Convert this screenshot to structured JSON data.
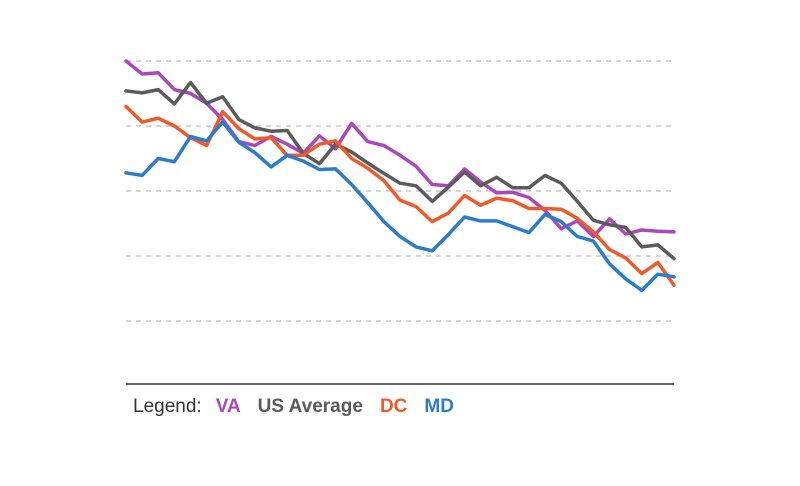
{
  "chart_data": {
    "type": "line",
    "title": "",
    "xlabel": "",
    "ylabel": "",
    "ylim": [
      0,
      5
    ],
    "grid": true,
    "grid_y": [
      1,
      2,
      3,
      4,
      5
    ],
    "legend_position": "bottom-left",
    "legend_title": "Legend:",
    "x": [
      1,
      2,
      3,
      4,
      5,
      6,
      7,
      8,
      9,
      10,
      11,
      12,
      13,
      14,
      15,
      16,
      17,
      18,
      19,
      20,
      21,
      22,
      23,
      24,
      25,
      26,
      27,
      28,
      29,
      30,
      31,
      32,
      33,
      34,
      35
    ],
    "series": [
      {
        "name": "VA",
        "color": "#ab47bc",
        "values": [
          5.0,
          4.8,
          4.82,
          4.56,
          4.5,
          4.35,
          4.1,
          3.76,
          3.7,
          3.84,
          3.72,
          3.58,
          3.85,
          3.65,
          4.04,
          3.76,
          3.7,
          3.55,
          3.38,
          3.1,
          3.08,
          3.34,
          3.14,
          2.97,
          2.98,
          2.9,
          2.7,
          2.42,
          2.54,
          2.3,
          2.57,
          2.34,
          2.4,
          2.38,
          2.37
        ]
      },
      {
        "name": "US Average",
        "color": "#5b5b5b",
        "values": [
          4.54,
          4.51,
          4.56,
          4.34,
          4.67,
          4.35,
          4.45,
          4.1,
          3.97,
          3.92,
          3.93,
          3.58,
          3.42,
          3.72,
          3.6,
          3.43,
          3.27,
          3.12,
          3.08,
          2.84,
          3.06,
          3.29,
          3.08,
          3.21,
          3.05,
          3.05,
          3.24,
          3.12,
          2.84,
          2.55,
          2.48,
          2.44,
          2.14,
          2.17,
          1.96
        ]
      },
      {
        "name": "DC",
        "color": "#f05a28",
        "values": [
          4.3,
          4.06,
          4.12,
          4.0,
          3.82,
          3.7,
          4.22,
          3.96,
          3.8,
          3.82,
          3.55,
          3.55,
          3.72,
          3.77,
          3.5,
          3.35,
          3.16,
          2.86,
          2.76,
          2.53,
          2.66,
          2.93,
          2.78,
          2.89,
          2.85,
          2.73,
          2.73,
          2.72,
          2.58,
          2.37,
          2.1,
          1.97,
          1.73,
          1.9,
          1.55
        ]
      },
      {
        "name": "MD",
        "color": "#2c7ccb",
        "values": [
          3.28,
          3.24,
          3.5,
          3.45,
          3.84,
          3.77,
          4.06,
          3.75,
          3.59,
          3.37,
          3.55,
          3.46,
          3.33,
          3.34,
          3.1,
          2.82,
          2.53,
          2.3,
          2.14,
          2.08,
          2.33,
          2.6,
          2.54,
          2.54,
          2.45,
          2.36,
          2.64,
          2.53,
          2.3,
          2.23,
          1.88,
          1.65,
          1.47,
          1.72,
          1.68
        ]
      }
    ]
  }
}
